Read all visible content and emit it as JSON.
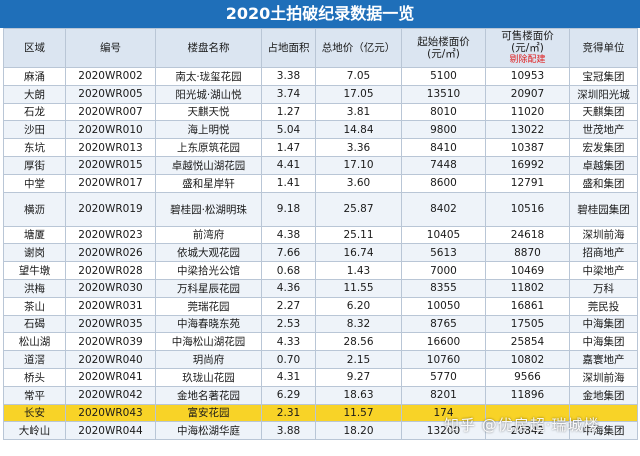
{
  "title": "2020土拍破纪录数据一览",
  "headers": {
    "district": "区域",
    "code": "编号",
    "project": "楼盘名称",
    "area": "占地面积",
    "total_price": "总地价（亿元）",
    "floor_price_line1": "起始楼面价",
    "floor_price_line2": "(元/㎡)",
    "sale_price_line1": "可售楼面价",
    "sale_price_line2": "(元/㎡)",
    "sale_price_note": "剔除配建",
    "winner": "竞得单位"
  },
  "rows": [
    {
      "district": "麻涌",
      "code": "2020WR002",
      "project": "南太·珑玺花园",
      "area": "3.38",
      "total": "7.05",
      "start": "5100",
      "sale": "10953",
      "winner": "宝冠集团"
    },
    {
      "district": "大朗",
      "code": "2020WR005",
      "project": "阳光城·湖山悦",
      "area": "3.74",
      "total": "17.05",
      "start": "13510",
      "sale": "20907",
      "winner": "深圳阳光城"
    },
    {
      "district": "石龙",
      "code": "2020WR007",
      "project": "天麒天悦",
      "area": "1.27",
      "total": "3.81",
      "start": "8010",
      "sale": "11020",
      "winner": "天麒集团"
    },
    {
      "district": "沙田",
      "code": "2020WR010",
      "project": "海上明悦",
      "area": "5.04",
      "total": "14.84",
      "start": "9800",
      "sale": "13022",
      "winner": "世茂地产"
    },
    {
      "district": "东坑",
      "code": "2020WR013",
      "project": "上东原筑花园",
      "area": "1.47",
      "total": "3.36",
      "start": "8410",
      "sale": "10387",
      "winner": "宏发集团"
    },
    {
      "district": "厚街",
      "code": "2020WR015",
      "project": "卓越悦山湖花园",
      "area": "4.41",
      "total": "17.10",
      "start": "7448",
      "sale": "16992",
      "winner": "卓越集团"
    },
    {
      "district": "中堂",
      "code": "2020WR017",
      "project": "盛和星岸轩",
      "area": "1.41",
      "total": "3.60",
      "start": "8600",
      "sale": "12791",
      "winner": "盛和集团"
    },
    {
      "district": "横沥",
      "code": "2020WR019",
      "project": "碧桂园·松湖明珠",
      "area": "9.18",
      "total": "25.87",
      "start": "8402",
      "sale": "10516",
      "winner": "碧桂园集团"
    },
    {
      "district": "塘厦",
      "code": "2020WR023",
      "project": "前湾府",
      "area": "4.38",
      "total": "25.11",
      "start": "10405",
      "sale": "24618",
      "winner": "深圳前海"
    },
    {
      "district": "谢岗",
      "code": "2020WR026",
      "project": "依城大观花园",
      "area": "7.66",
      "total": "16.74",
      "start": "5613",
      "sale": "8870",
      "winner": "招商地产"
    },
    {
      "district": "望牛墩",
      "code": "2020WR028",
      "project": "中梁拾光公馆",
      "area": "0.68",
      "total": "1.43",
      "start": "7000",
      "sale": "10469",
      "winner": "中梁地产"
    },
    {
      "district": "洪梅",
      "code": "2020WR030",
      "project": "万科星辰花园",
      "area": "4.36",
      "total": "11.55",
      "start": "8355",
      "sale": "11802",
      "winner": "万科"
    },
    {
      "district": "茶山",
      "code": "2020WR031",
      "project": "莞瑞花园",
      "area": "2.27",
      "total": "6.20",
      "start": "10050",
      "sale": "16861",
      "winner": "莞民投"
    },
    {
      "district": "石碣",
      "code": "2020WR035",
      "project": "中海春晓东苑",
      "area": "2.53",
      "total": "8.32",
      "start": "8765",
      "sale": "17505",
      "winner": "中海集团"
    },
    {
      "district": "松山湖",
      "code": "2020WR039",
      "project": "中海松山湖花园",
      "area": "4.33",
      "total": "28.56",
      "start": "16600",
      "sale": "25854",
      "winner": "中海集团"
    },
    {
      "district": "道滘",
      "code": "2020WR040",
      "project": "玥尚府",
      "area": "0.70",
      "total": "2.15",
      "start": "10760",
      "sale": "10802",
      "winner": "嘉寰地产"
    },
    {
      "district": "桥头",
      "code": "2020WR041",
      "project": "玖珑山花园",
      "area": "4.31",
      "total": "9.27",
      "start": "5770",
      "sale": "9566",
      "winner": "深圳前海"
    },
    {
      "district": "常平",
      "code": "2020WR042",
      "project": "金地名著花园",
      "area": "6.29",
      "total": "18.63",
      "start": "8201",
      "sale": "11896",
      "winner": "金地集团"
    },
    {
      "district": "长安",
      "code": "2020WR043",
      "project": "富安花园",
      "area": "2.31",
      "total": "11.57",
      "start": "174",
      "sale": "",
      "winner": ""
    },
    {
      "district": "大岭山",
      "code": "2020WR044",
      "project": "中海松湖华庭",
      "area": "3.88",
      "total": "18.20",
      "start": "13200",
      "sale": "20842",
      "winner": "中海集团"
    }
  ],
  "watermark": "知乎 @优房超·瑞城楼",
  "colors": {
    "title_bg": "#1f6fb9",
    "header_bg": "#dbe5f1",
    "row_alt_bg": "#eef3f9",
    "highlight_bg": "#f8d327",
    "note_red": "#e02020"
  }
}
